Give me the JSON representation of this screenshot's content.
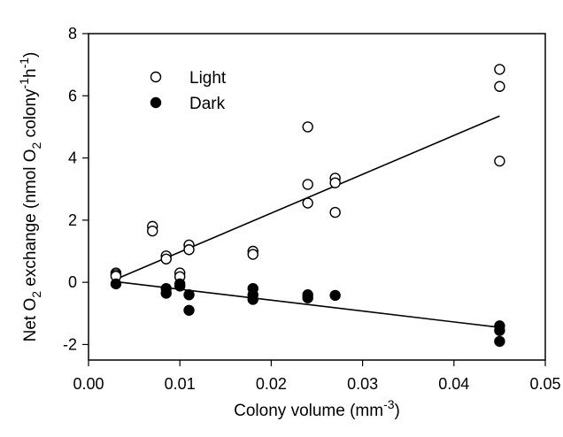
{
  "chart_data": {
    "type": "scatter",
    "xlabel": {
      "main": "Colony volume (mm",
      "sup": "-3",
      "tail": ")"
    },
    "ylabel": {
      "p1": "Net O",
      "s1": "2",
      "p2": " exchange (nmol O",
      "s2": "2",
      "p3": "  colony",
      "s3": "-1",
      "p4": "h",
      "s4": "-1",
      "p5": ")"
    },
    "xlim": [
      0.0,
      0.05
    ],
    "ylim": [
      -2.5,
      8
    ],
    "x_ticks": [
      0.0,
      0.01,
      0.02,
      0.03,
      0.04,
      0.05
    ],
    "x_tick_labels": [
      "0.00",
      "0.01",
      "0.02",
      "0.03",
      "0.04",
      "0.05"
    ],
    "y_ticks": [
      -2,
      0,
      2,
      4,
      6,
      8
    ],
    "y_tick_labels": [
      "-2",
      "0",
      "2",
      "4",
      "6",
      "8"
    ],
    "grid": false,
    "legend_position": "top-left",
    "series": [
      {
        "name": "Light",
        "marker": "open-circle",
        "color": "#000000",
        "points": [
          [
            0.003,
            0.3
          ],
          [
            0.003,
            0.25
          ],
          [
            0.003,
            0.2
          ],
          [
            0.007,
            1.8
          ],
          [
            0.007,
            1.65
          ],
          [
            0.0085,
            0.85
          ],
          [
            0.0085,
            0.75
          ],
          [
            0.01,
            0.3
          ],
          [
            0.01,
            0.18
          ],
          [
            0.011,
            1.2
          ],
          [
            0.011,
            1.05
          ],
          [
            0.018,
            1.0
          ],
          [
            0.018,
            0.9
          ],
          [
            0.024,
            5.0
          ],
          [
            0.024,
            3.15
          ],
          [
            0.024,
            2.55
          ],
          [
            0.027,
            3.35
          ],
          [
            0.027,
            3.2
          ],
          [
            0.027,
            2.25
          ],
          [
            0.045,
            6.85
          ],
          [
            0.045,
            6.3
          ],
          [
            0.045,
            3.9
          ]
        ],
        "fit": {
          "x": [
            0.003,
            0.045
          ],
          "y": [
            0.1,
            5.35
          ]
        }
      },
      {
        "name": "Dark",
        "marker": "filled-circle",
        "color": "#000000",
        "points": [
          [
            0.003,
            -0.05
          ],
          [
            0.0085,
            -0.2
          ],
          [
            0.0085,
            -0.35
          ],
          [
            0.01,
            -0.05
          ],
          [
            0.01,
            -0.12
          ],
          [
            0.011,
            -0.4
          ],
          [
            0.011,
            -0.9
          ],
          [
            0.018,
            -0.2
          ],
          [
            0.018,
            -0.4
          ],
          [
            0.018,
            -0.55
          ],
          [
            0.024,
            -0.4
          ],
          [
            0.024,
            -0.5
          ],
          [
            0.027,
            -0.42
          ],
          [
            0.045,
            -1.4
          ],
          [
            0.045,
            -1.55
          ],
          [
            0.045,
            -1.9
          ]
        ],
        "fit": {
          "x": [
            0.003,
            0.045
          ],
          "y": [
            0.02,
            -1.45
          ]
        }
      }
    ]
  }
}
